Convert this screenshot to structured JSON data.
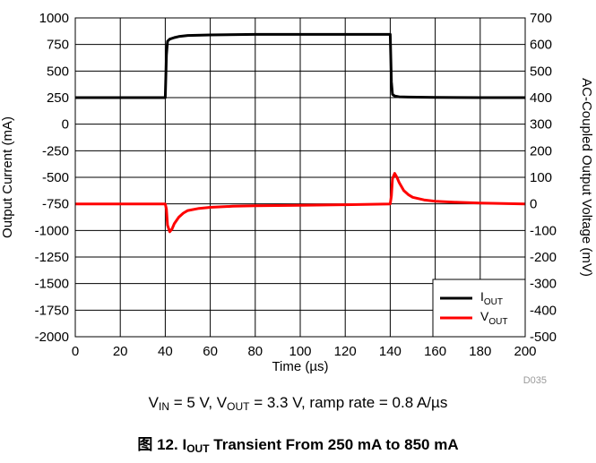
{
  "chart_data": {
    "type": "line",
    "title": "图 12. I_OUT Transient From 250 mA to 850 mA",
    "figure_number": "图 12.",
    "caption": {
      "prefix": "I",
      "prefix_sub": "OUT",
      "rest": " Transient From 250 mA to 850 mA"
    },
    "conditions": {
      "vin_label": "V",
      "vin_sub": "IN",
      "vin_value": " = 5 V, ",
      "vout_label": "V",
      "vout_sub": "OUT",
      "vout_value": " = 3.3 V, ramp rate = 0.8 A/µs"
    },
    "figure_code": "D035",
    "xlabel": "Time (µs)",
    "ylabel": "Output Current (mA)",
    "y2label": "AC-Coupled Output Voltage (mV)",
    "xlim": [
      0,
      200
    ],
    "ylim": [
      -2000,
      1000
    ],
    "y2lim": [
      -500,
      700
    ],
    "x_ticks": [
      0,
      20,
      40,
      60,
      80,
      100,
      120,
      140,
      160,
      180,
      200
    ],
    "y_ticks": [
      1000,
      750,
      500,
      250,
      0,
      -250,
      -500,
      -750,
      -1000,
      -1250,
      -1500,
      -1750,
      -2000
    ],
    "y2_ticks": [
      700,
      600,
      500,
      400,
      300,
      200,
      100,
      0,
      -100,
      -200,
      -300,
      -400,
      -500
    ],
    "grid": true,
    "legend_position": "bottom-right",
    "series": [
      {
        "name": "IOUT",
        "label_main": "I",
        "label_sub": "OUT",
        "color": "#000000",
        "axis": "left",
        "x": [
          0,
          40,
          40.5,
          41,
          42,
          44,
          46,
          50,
          60,
          80,
          100,
          120,
          140,
          140.5,
          141,
          142,
          144,
          148,
          160,
          180,
          200
        ],
        "y": [
          250,
          250,
          650,
          780,
          800,
          815,
          825,
          835,
          840,
          845,
          845,
          845,
          845,
          400,
          280,
          265,
          258,
          255,
          252,
          250,
          250
        ]
      },
      {
        "name": "VOUT",
        "label_main": "V",
        "label_sub": "OUT",
        "color": "#ff0000",
        "axis": "right",
        "x": [
          0,
          40,
          40.5,
          41,
          42,
          43,
          44,
          46,
          48,
          50,
          55,
          60,
          70,
          80,
          100,
          120,
          140,
          140.5,
          141,
          142,
          143,
          144,
          146,
          148,
          150,
          155,
          160,
          170,
          180,
          200
        ],
        "y": [
          0,
          0,
          -20,
          -80,
          -105,
          -95,
          -75,
          -50,
          -35,
          -25,
          -17,
          -13,
          -9,
          -7,
          -5,
          -3,
          0,
          30,
          95,
          115,
          100,
          80,
          50,
          35,
          25,
          15,
          10,
          6,
          3,
          0
        ]
      }
    ]
  }
}
